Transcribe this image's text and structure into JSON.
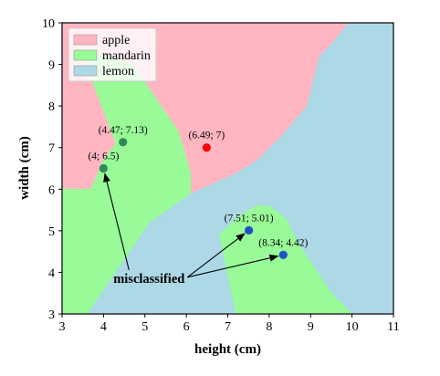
{
  "chart_data": {
    "type": "scatter",
    "xlabel": "height (cm)",
    "ylabel": "width (cm)",
    "xlim": [
      3,
      11
    ],
    "ylim": [
      3,
      10
    ],
    "xticks": [
      3,
      4,
      5,
      6,
      7,
      8,
      9,
      10,
      11
    ],
    "yticks": [
      3,
      4,
      5,
      6,
      7,
      8,
      9,
      10
    ],
    "grid": false,
    "legend_position": "top-left",
    "legend": [
      {
        "name": "apple",
        "color": "#ffb6c1"
      },
      {
        "name": "mandarin",
        "color": "#98fb98"
      },
      {
        "name": "lemon",
        "color": "#add8e6"
      }
    ],
    "regions": [
      {
        "class": "lemon",
        "polygon": [
          [
            3,
            3
          ],
          [
            11,
            3
          ],
          [
            11,
            10
          ],
          [
            3,
            10
          ]
        ]
      },
      {
        "class": "apple",
        "polygon": [
          [
            3,
            10
          ],
          [
            9.9,
            10
          ],
          [
            9.5,
            9.5
          ],
          [
            9.2,
            9.2
          ],
          [
            8.9,
            8
          ],
          [
            8.3,
            7.3
          ],
          [
            7.7,
            6.7
          ],
          [
            7.2,
            6.4
          ],
          [
            6.1,
            5.9
          ],
          [
            6.1,
            6.4
          ],
          [
            5.8,
            7.4
          ],
          [
            4.7,
            9
          ],
          [
            4.2,
            9.2
          ],
          [
            3,
            9.2
          ]
        ]
      },
      {
        "class": "apple",
        "polygon": [
          [
            3,
            9.2
          ],
          [
            4.2,
            9.2
          ],
          [
            4.3,
            7.1
          ],
          [
            4.0,
            6.7
          ],
          [
            3.7,
            6
          ],
          [
            3,
            6
          ]
        ]
      },
      {
        "class": "mandarin",
        "polygon": [
          [
            3.5,
            9.2
          ],
          [
            4.2,
            9.2
          ],
          [
            4.7,
            9
          ],
          [
            5.8,
            7.4
          ],
          [
            6.1,
            6.4
          ],
          [
            6.1,
            5.9
          ],
          [
            5.1,
            5.2
          ],
          [
            3.6,
            3
          ],
          [
            3,
            3
          ],
          [
            3,
            6
          ],
          [
            3.7,
            6
          ],
          [
            4.0,
            6.7
          ],
          [
            4.3,
            7.1
          ]
        ]
      },
      {
        "class": "mandarin",
        "polygon": [
          [
            6.8,
            4.9
          ],
          [
            7.2,
            5.3
          ],
          [
            7.7,
            5.6
          ],
          [
            8.0,
            5.6
          ],
          [
            8.4,
            5.3
          ],
          [
            8.7,
            4.7
          ],
          [
            9.1,
            4.1
          ],
          [
            9.5,
            3.5
          ],
          [
            10,
            3
          ],
          [
            7.2,
            3
          ]
        ]
      }
    ],
    "points": [
      {
        "label": "(6.49; 7)",
        "x": 6.49,
        "y": 7,
        "color": "#ff0000"
      },
      {
        "label": "(4.47; 7.13)",
        "x": 4.47,
        "y": 7.13,
        "color": "#2e8b57"
      },
      {
        "label": "(4; 6.5)",
        "x": 4,
        "y": 6.5,
        "color": "#2e8b57"
      },
      {
        "label": "(7.51; 5.01)",
        "x": 7.51,
        "y": 5.01,
        "color": "#1e50c8"
      },
      {
        "label": "(8.34; 4.42)",
        "x": 8.34,
        "y": 4.42,
        "color": "#1e50c8"
      }
    ],
    "annotation": {
      "text": "misclassified",
      "text_at": [
        5.1,
        3.75
      ],
      "arrows_to": [
        [
          4,
          6.5
        ],
        [
          7.51,
          5.01
        ],
        [
          8.34,
          4.42
        ]
      ]
    }
  }
}
